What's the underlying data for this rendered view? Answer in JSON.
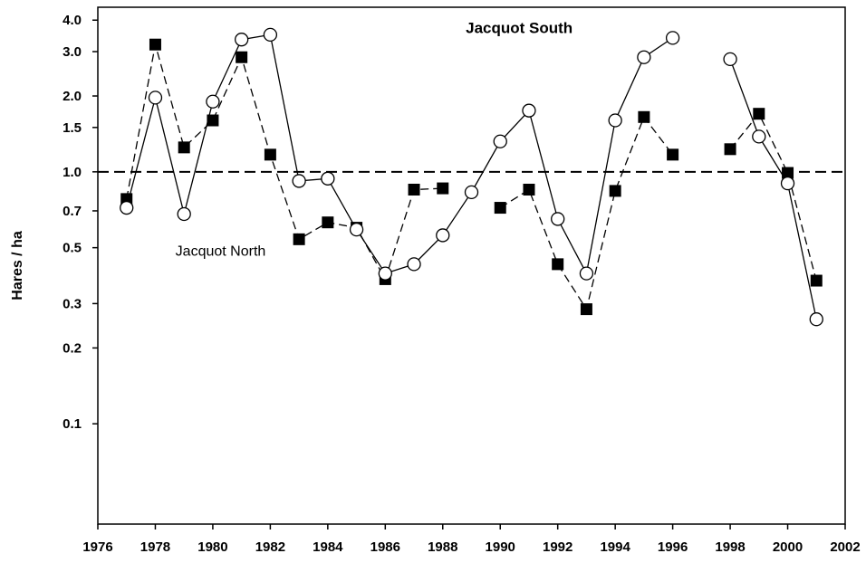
{
  "chart_data": {
    "type": "line",
    "ylabel": "Hares / ha",
    "xlabel": "",
    "yscale": "log",
    "xlim": [
      1976,
      2002
    ],
    "ylim": [
      0.04,
      4.5
    ],
    "xticks": [
      "1976",
      "1978",
      "1980",
      "1982",
      "1984",
      "1986",
      "1988",
      "1990",
      "1992",
      "1994",
      "1996",
      "1998",
      "2000",
      "2002"
    ],
    "yticks": [
      {
        "value": 4.0,
        "label": "4.0"
      },
      {
        "value": 3.0,
        "label": "3.0"
      },
      {
        "value": 2.0,
        "label": "2.0"
      },
      {
        "value": 1.5,
        "label": "1.5"
      },
      {
        "value": 1.0,
        "label": "1.0"
      },
      {
        "value": 0.7,
        "label": "0.7"
      },
      {
        "value": 0.5,
        "label": "0.5"
      },
      {
        "value": 0.3,
        "label": "0.3"
      },
      {
        "value": 0.2,
        "label": "0.2"
      },
      {
        "value": 0.1,
        "label": "0.1"
      }
    ],
    "reference_line": {
      "y": 1.0,
      "style": "dashed"
    },
    "annotations": [
      {
        "text": "Jacquot South",
        "series": "south"
      },
      {
        "text": "Jacquot North",
        "series": "north"
      }
    ],
    "series": [
      {
        "name": "Jacquot South",
        "key": "south",
        "marker": "open-circle",
        "line": "solid",
        "segments": [
          [
            [
              1977,
              0.72
            ],
            [
              1978,
              1.97
            ],
            [
              1979,
              0.68
            ],
            [
              1980,
              1.9
            ],
            [
              1981,
              3.35
            ],
            [
              1982,
              3.5
            ],
            [
              1983,
              0.92
            ],
            [
              1984,
              0.94
            ],
            [
              1985,
              0.59
            ],
            [
              1986,
              0.395
            ],
            [
              1987,
              0.43
            ],
            [
              1988,
              0.56
            ],
            [
              1989,
              0.83
            ],
            [
              1990,
              1.32
            ],
            [
              1991,
              1.75
            ],
            [
              1992,
              0.65
            ],
            [
              1993,
              0.395
            ],
            [
              1994,
              1.6
            ],
            [
              1995,
              2.85
            ],
            [
              1996,
              3.4
            ]
          ],
          [
            [
              1998,
              2.8
            ],
            [
              1999,
              1.38
            ],
            [
              2000,
              0.9
            ],
            [
              2001,
              0.26
            ]
          ]
        ]
      },
      {
        "name": "Jacquot North",
        "key": "north",
        "marker": "filled-square",
        "line": "dashed",
        "segments": [
          [
            [
              1977,
              0.78
            ],
            [
              1978,
              3.2
            ],
            [
              1979,
              1.25
            ],
            [
              1980,
              1.6
            ],
            [
              1981,
              2.85
            ],
            [
              1982,
              1.17
            ],
            [
              1983,
              0.54
            ],
            [
              1984,
              0.63
            ],
            [
              1985,
              0.6
            ],
            [
              1986,
              0.375
            ],
            [
              1987,
              0.85
            ],
            [
              1988,
              0.86
            ]
          ],
          [
            [
              1990,
              0.72
            ],
            [
              1991,
              0.85
            ],
            [
              1992,
              0.43
            ],
            [
              1993,
              0.285
            ],
            [
              1994,
              0.84
            ],
            [
              1995,
              1.65
            ],
            [
              1996,
              1.17
            ]
          ],
          [
            [
              1998,
              1.23
            ],
            [
              1999,
              1.7
            ],
            [
              2000,
              0.99
            ],
            [
              2001,
              0.37
            ]
          ]
        ]
      }
    ]
  }
}
